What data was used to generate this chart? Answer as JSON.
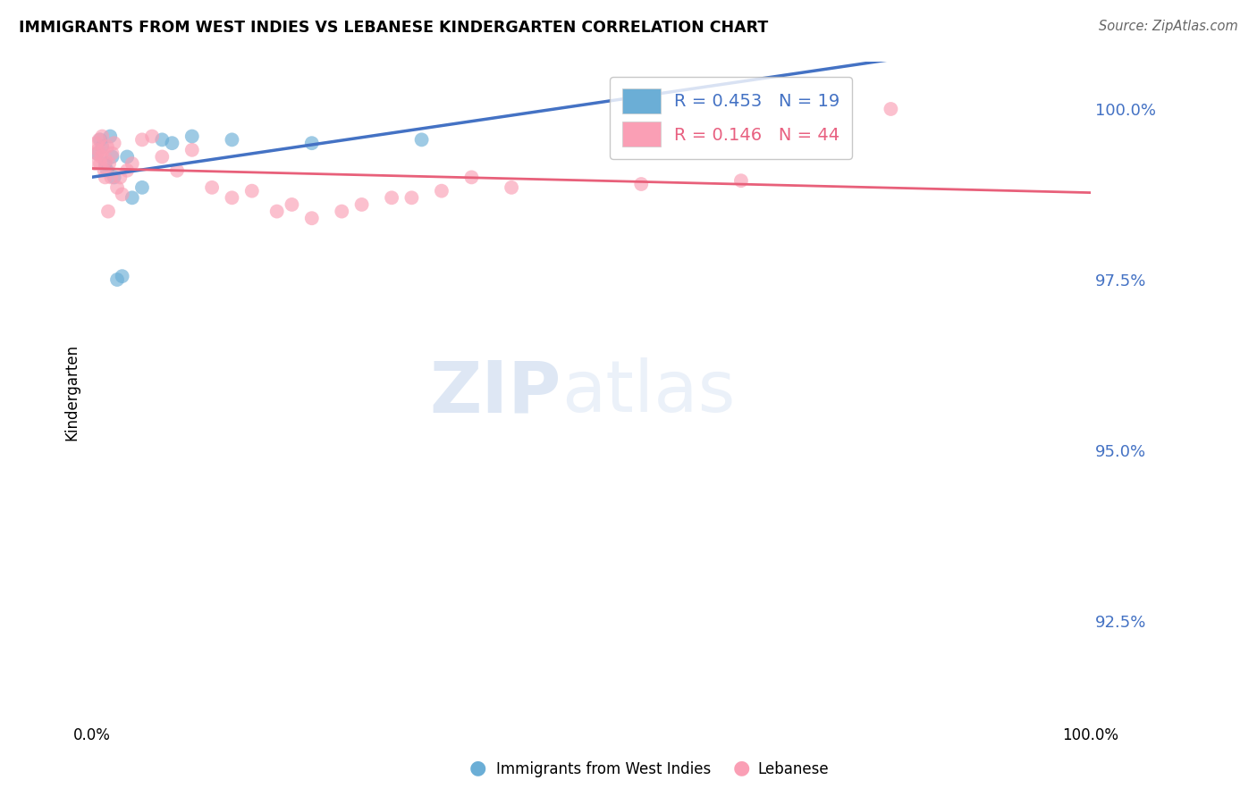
{
  "title": "IMMIGRANTS FROM WEST INDIES VS LEBANESE KINDERGARTEN CORRELATION CHART",
  "source": "Source: ZipAtlas.com",
  "ylabel": "Kindergarten",
  "yticks": [
    100.0,
    97.5,
    95.0,
    92.5
  ],
  "ytick_labels": [
    "100.0%",
    "97.5%",
    "95.0%",
    "92.5%"
  ],
  "xlim": [
    0.0,
    100.0
  ],
  "ylim": [
    91.0,
    100.7
  ],
  "west_indies_R": 0.453,
  "west_indies_N": 19,
  "lebanese_R": 0.146,
  "lebanese_N": 44,
  "west_indies_color": "#6baed6",
  "lebanese_color": "#fa9fb5",
  "trendline_blue": "#4472c4",
  "trendline_pink": "#e8607a",
  "wi_x": [
    0.5,
    0.8,
    1.0,
    1.3,
    1.5,
    1.8,
    2.0,
    2.2,
    2.5,
    3.0,
    3.5,
    4.0,
    5.0,
    7.0,
    8.0,
    10.0,
    14.0,
    22.0,
    33.0
  ],
  "wi_y": [
    99.35,
    99.55,
    99.45,
    99.2,
    99.1,
    99.6,
    99.3,
    99.0,
    97.5,
    97.55,
    99.3,
    98.7,
    98.85,
    99.55,
    99.5,
    99.6,
    99.55,
    99.5,
    99.55
  ],
  "lb_x": [
    0.3,
    0.4,
    0.5,
    0.6,
    0.7,
    0.8,
    0.9,
    1.0,
    1.1,
    1.2,
    1.3,
    1.4,
    1.5,
    1.6,
    1.7,
    1.9,
    2.0,
    2.2,
    2.5,
    2.8,
    3.0,
    3.5,
    4.0,
    5.0,
    6.0,
    7.0,
    8.5,
    10.0,
    12.0,
    14.0,
    16.0,
    18.5,
    20.0,
    22.0,
    25.0,
    27.0,
    30.0,
    32.0,
    35.0,
    38.0,
    42.0,
    55.0,
    65.0,
    80.0
  ],
  "lb_y": [
    99.2,
    99.5,
    99.35,
    99.4,
    99.55,
    99.2,
    99.3,
    99.6,
    99.4,
    99.1,
    99.0,
    99.25,
    99.45,
    98.5,
    99.2,
    99.0,
    99.35,
    99.5,
    98.85,
    99.0,
    98.75,
    99.1,
    99.2,
    99.55,
    99.6,
    99.3,
    99.1,
    99.4,
    98.85,
    98.7,
    98.8,
    98.5,
    98.6,
    98.4,
    98.5,
    98.6,
    98.7,
    98.7,
    98.8,
    99.0,
    98.85,
    98.9,
    98.95,
    100.0
  ]
}
